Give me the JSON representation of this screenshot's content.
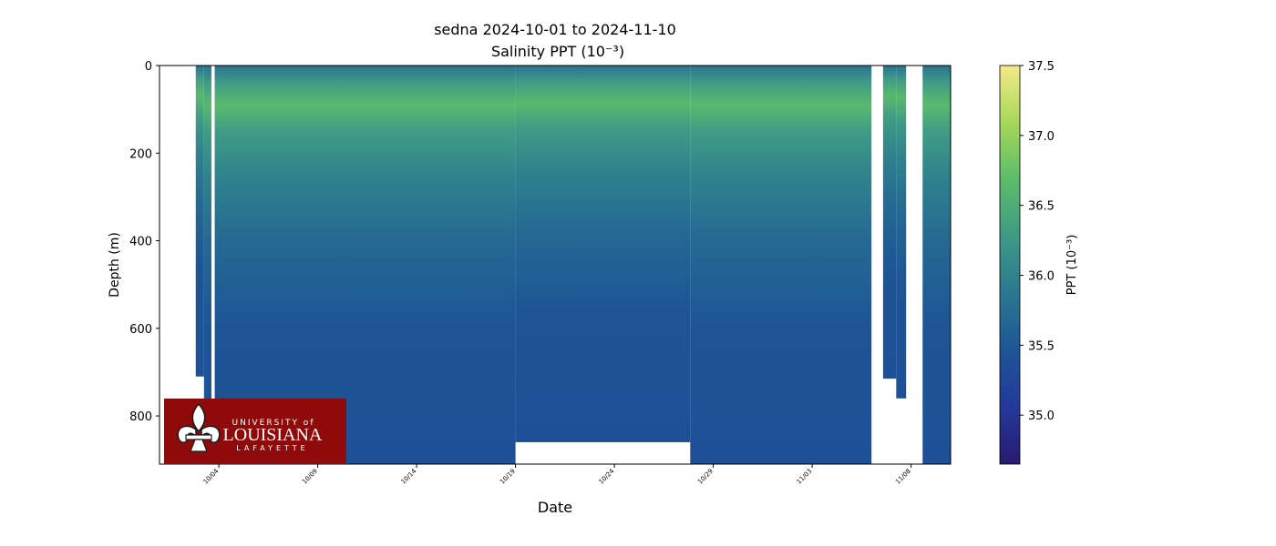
{
  "chart_data": {
    "type": "heatmap",
    "title": "sedna 2024-10-01 to 2024-11-10",
    "subtitle": "Salinity PPT (10⁻³)",
    "xlabel": "Date",
    "ylabel": "Depth (m)",
    "x_range": [
      "2024-10-01",
      "2024-11-10"
    ],
    "y_range": [
      0,
      910
    ],
    "y_inverted": true,
    "x_ticks": [
      "10/04",
      "10/09",
      "10/14",
      "10/19",
      "10/24",
      "10/29",
      "11/03",
      "11/08"
    ],
    "y_ticks": [
      "0",
      "200",
      "400",
      "600",
      "800"
    ],
    "colorbar": {
      "label": "PPT (10⁻³)",
      "range": [
        34.65,
        37.5
      ],
      "ticks": [
        "35.0",
        "35.5",
        "36.0",
        "36.5",
        "37.0",
        "37.5"
      ],
      "colormap": [
        "#2a1a6e",
        "#24389b",
        "#1d5596",
        "#2a7890",
        "#3e9a86",
        "#5cbc6a",
        "#a6d85a",
        "#f4ea8a"
      ]
    },
    "depth_profile": [
      {
        "depth": 0,
        "salinity": 35.8
      },
      {
        "depth": 40,
        "salinity": 36.3
      },
      {
        "depth": 90,
        "salinity": 36.65
      },
      {
        "depth": 150,
        "salinity": 36.3
      },
      {
        "depth": 250,
        "salinity": 36.0
      },
      {
        "depth": 400,
        "salinity": 35.7
      },
      {
        "depth": 600,
        "salinity": 35.45
      },
      {
        "depth": 910,
        "salinity": 35.4
      }
    ],
    "segments": [
      {
        "start": "2024-10-02T20:00",
        "end": "2024-10-03T06:00",
        "max_depth": 710
      },
      {
        "start": "2024-10-03T06:00",
        "end": "2024-10-03T15:00",
        "max_depth": 910
      },
      {
        "start": "2024-10-03T19:00",
        "end": "2024-10-19T00:00",
        "max_depth": 910
      },
      {
        "start": "2024-10-19T00:00",
        "end": "2024-10-27T20:00",
        "max_depth": 860
      },
      {
        "start": "2024-10-27T20:00",
        "end": "2024-11-06T00:00",
        "max_depth": 910
      },
      {
        "start": "2024-11-06T14:00",
        "end": "2024-11-07T06:00",
        "max_depth": 715
      },
      {
        "start": "2024-11-07T06:00",
        "end": "2024-11-07T18:00",
        "max_depth": 760
      },
      {
        "start": "2024-11-08T14:00",
        "end": "2024-11-10T10:00",
        "max_depth": 910
      }
    ]
  },
  "logo": {
    "line1": "UNIVERSITY of",
    "line2": "LOUISIANA",
    "line3": "LAFAYETTE"
  }
}
